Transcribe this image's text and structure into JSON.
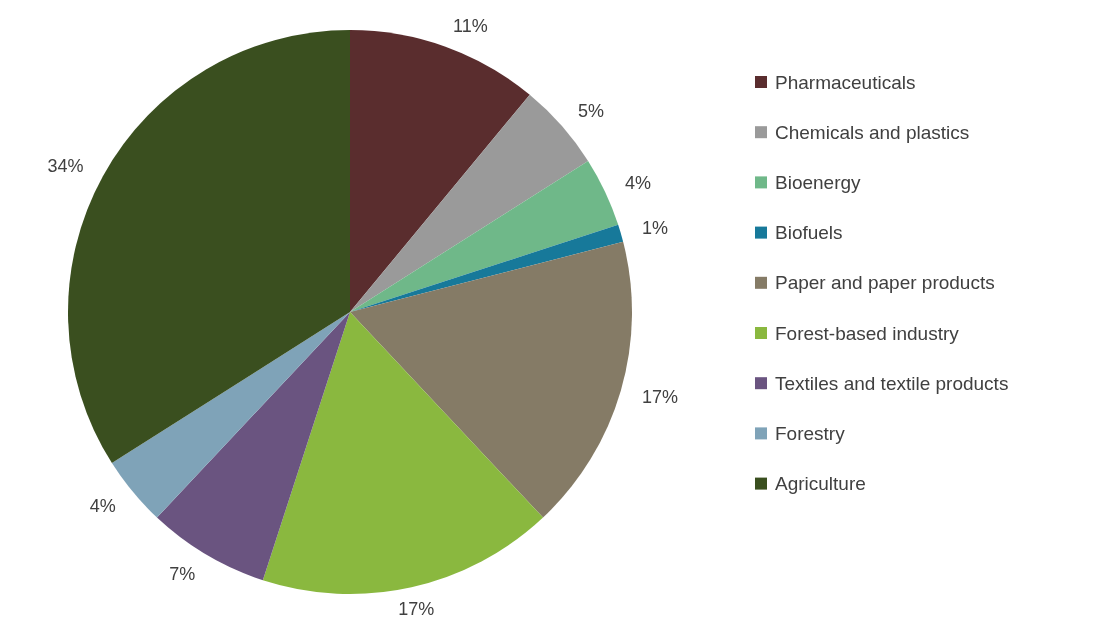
{
  "chart_data": {
    "type": "pie",
    "categories": [
      "Pharmaceuticals",
      "Chemicals and plastics",
      "Bioenergy",
      "Biofuels",
      "Paper and paper products",
      "Forest-based industry",
      "Textiles and textile products",
      "Forestry",
      "Agriculture"
    ],
    "values": [
      11,
      5,
      4,
      1,
      17,
      17,
      7,
      4,
      34
    ],
    "value_labels": [
      "11%",
      "5%",
      "4%",
      "1%",
      "17%",
      "17%",
      "7%",
      "4%",
      "34%"
    ],
    "colors": [
      "#5a2d2e",
      "#9a9a9a",
      "#6fb889",
      "#17799a",
      "#857b66",
      "#8ab83f",
      "#6a5480",
      "#7fa3b8",
      "#3a4f1f"
    ],
    "legend": "right"
  }
}
